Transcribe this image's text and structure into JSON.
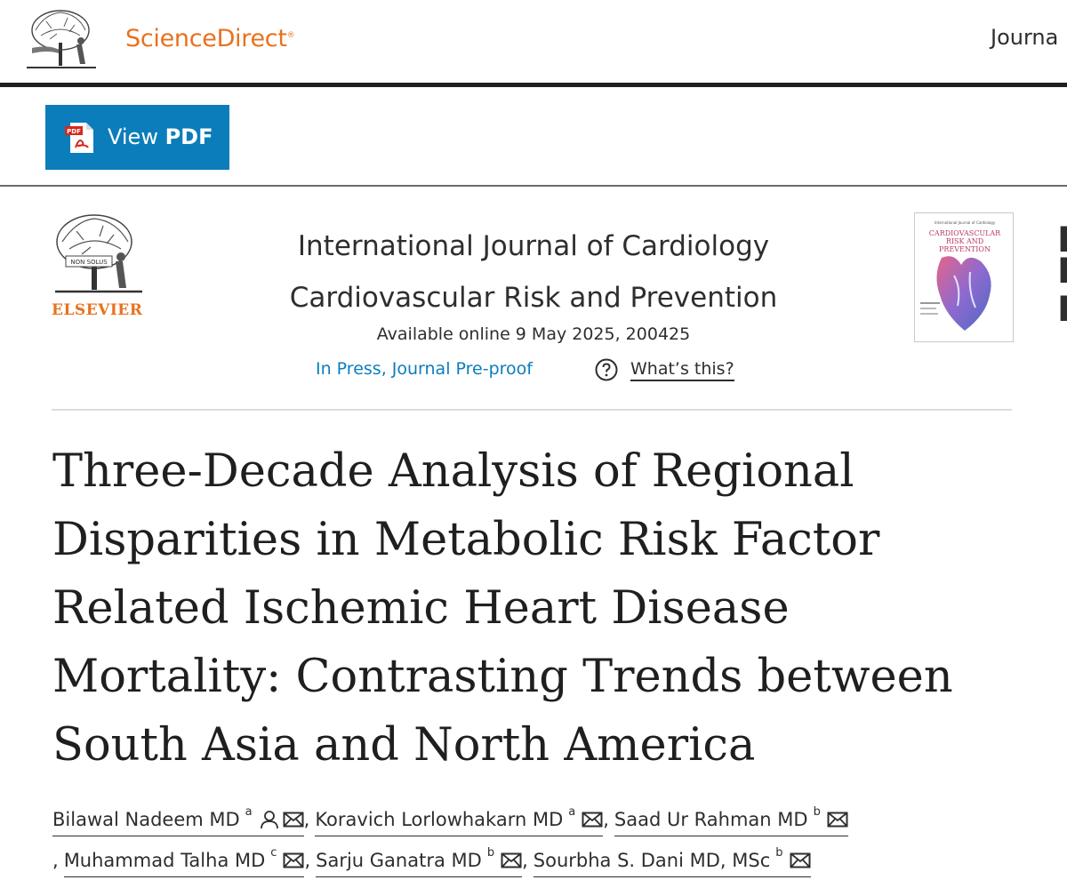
{
  "header": {
    "brand": "ScienceDirect",
    "trademark": "®",
    "journals_link": "Journa"
  },
  "toolbar": {
    "view_pdf_prefix": "View",
    "view_pdf_bold": "PDF",
    "pdf_icon_tag": "PDF"
  },
  "journal": {
    "publisher": "ELSEVIER",
    "tree_motto": "NON SOLUS",
    "title_line1": "International Journal of Cardiology",
    "title_line2": "Cardiovascular Risk and Prevention",
    "available": "Available online 9 May 2025, 200425",
    "status": "In Press, Journal Pre-proof",
    "whats_this": "What’s this?",
    "cover_small": "International Journal of Cardiology",
    "cover_title": "CARDIOVASCULAR RISK AND PREVENTION"
  },
  "article": {
    "title_lines": [
      "Three-Decade Analysis of Regional",
      "Disparities in Metabolic Risk Factor",
      "Related Ischemic Heart Disease",
      "Mortality: Contrasting Trends between",
      "South Asia and North America"
    ]
  },
  "authors": [
    {
      "name": "Bilawal Nadeem MD",
      "aff": "a",
      "person": true,
      "email": true
    },
    {
      "name": "Koravich Lorlowhakarn MD",
      "aff": "a",
      "email": true
    },
    {
      "name": "Saad Ur Rahman MD",
      "aff": "b",
      "email": true
    },
    {
      "name": "Muhammad Talha MD",
      "aff": "c",
      "email": true
    },
    {
      "name": "Sarju Ganatra MD",
      "aff": "b",
      "email": true
    },
    {
      "name": "Sourbha S. Dani MD, MSc",
      "aff": "b",
      "email": true
    }
  ],
  "colors": {
    "brand_orange": "#e9711c",
    "link_blue": "#0c7dbb",
    "text": "#2e2e2e"
  },
  "icons": [
    "tree-logo",
    "pdf-icon",
    "help-circle-icon",
    "person-icon",
    "envelope-icon"
  ]
}
